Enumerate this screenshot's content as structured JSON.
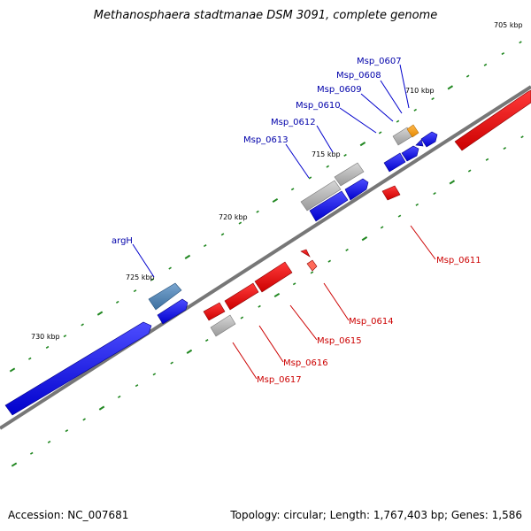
{
  "title": "Methanosphaera stadtmanae DSM 3091, complete genome",
  "footer": {
    "accession": "Accession: NC_007681",
    "summary": "Topology: circular; Length: 1,767,403 bp; Genes: 1,586"
  },
  "colors": {
    "forward_gene": "#0000ee",
    "reverse_gene": "#ee0000",
    "grey_gene": "#b4b4b4",
    "highlight_blue": "#4f86b8",
    "highlight_orange": "#ff9900",
    "forward_label": "#0000aa",
    "reverse_label": "#cc0000",
    "axis": "#777777",
    "tick": "#228822"
  },
  "ticks": [
    "705 kbp",
    "710 kbp",
    "715 kbp",
    "720 kbp",
    "725 kbp",
    "730 kbp"
  ],
  "forward_labels": [
    "Msp_0607",
    "Msp_0608",
    "Msp_0609",
    "Msp_0610",
    "Msp_0612",
    "Msp_0613",
    "argH"
  ],
  "reverse_labels": [
    "Msp_0611",
    "Msp_0614",
    "Msp_0615",
    "Msp_0616",
    "Msp_0617"
  ]
}
